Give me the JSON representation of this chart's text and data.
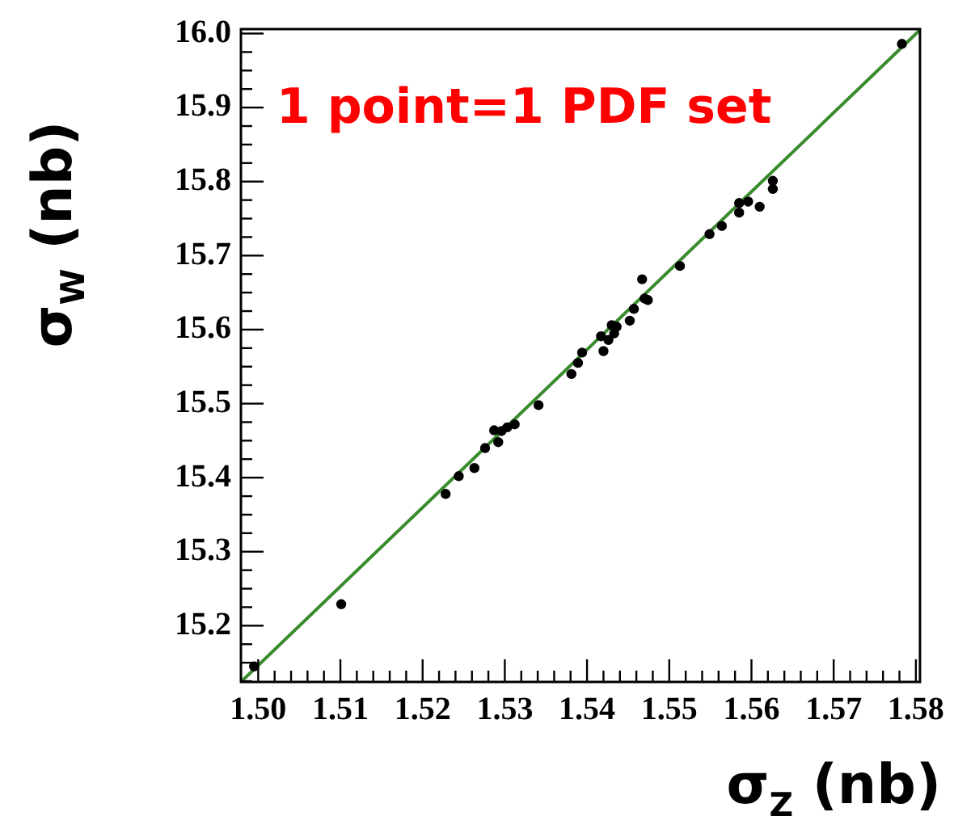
{
  "chart_data": {
    "type": "scatter",
    "xlabel": "σ$_{Z}$ (nb)",
    "ylabel": "σ$_{W}$ (nb)",
    "annotations": [
      "1 point=1 PDF set"
    ],
    "xlim": [
      1.4979,
      1.5805
    ],
    "ylim": [
      15.124,
      16.006
    ],
    "xticks": [
      {
        "value": 1.5,
        "label": "1.50"
      },
      {
        "value": 1.502,
        "label": null
      },
      {
        "value": 1.504,
        "label": null
      },
      {
        "value": 1.506,
        "label": null
      },
      {
        "value": 1.508,
        "label": null
      },
      1.51,
      {
        "value": 1.512,
        "label": null
      },
      {
        "value": 1.514,
        "label": null
      },
      {
        "value": 1.516,
        "label": null
      },
      {
        "value": 1.518,
        "label": null
      },
      1.52,
      {
        "value": 1.522,
        "label": null
      },
      {
        "value": 1.524,
        "label": null
      },
      {
        "value": 1.526,
        "label": null
      },
      {
        "value": 1.528,
        "label": null
      },
      1.53,
      {
        "value": 1.532,
        "label": null
      },
      {
        "value": 1.534,
        "label": null
      },
      {
        "value": 1.536,
        "label": null
      },
      {
        "value": 1.538,
        "label": null
      },
      1.54,
      {
        "value": 1.542,
        "label": null
      },
      {
        "value": 1.544,
        "label": null
      },
      {
        "value": 1.546,
        "label": null
      },
      {
        "value": 1.548,
        "label": null
      },
      1.55,
      {
        "value": 1.552,
        "label": null
      },
      {
        "value": 1.554,
        "label": null
      },
      {
        "value": 1.556,
        "label": null
      },
      {
        "value": 1.558,
        "label": null
      },
      1.56,
      {
        "value": 1.562,
        "label": null
      },
      {
        "value": 1.564,
        "label": null
      },
      {
        "value": 1.566,
        "label": null
      },
      {
        "value": 1.568,
        "label": null
      },
      1.57,
      {
        "value": 1.572,
        "label": null
      },
      {
        "value": 1.574,
        "label": null
      },
      {
        "value": 1.576,
        "label": null
      },
      {
        "value": 1.578,
        "label": null
      },
      1.58
    ],
    "yticks": [
      {
        "value": 15.125,
        "label": null
      },
      {
        "value": 15.15,
        "label": null
      },
      {
        "value": 15.175,
        "label": null
      },
      15.2,
      {
        "value": 15.225,
        "label": null
      },
      {
        "value": 15.25,
        "label": null
      },
      {
        "value": 15.275,
        "label": null
      },
      15.3,
      {
        "value": 15.325,
        "label": null
      },
      {
        "value": 15.35,
        "label": null
      },
      {
        "value": 15.375,
        "label": null
      },
      15.4,
      {
        "value": 15.425,
        "label": null
      },
      {
        "value": 15.45,
        "label": null
      },
      {
        "value": 15.475,
        "label": null
      },
      15.5,
      {
        "value": 15.525,
        "label": null
      },
      {
        "value": 15.55,
        "label": null
      },
      {
        "value": 15.575,
        "label": null
      },
      15.6,
      {
        "value": 15.625,
        "label": null
      },
      {
        "value": 15.65,
        "label": null
      },
      {
        "value": 15.675,
        "label": null
      },
      15.7,
      {
        "value": 15.725,
        "label": null
      },
      {
        "value": 15.75,
        "label": null
      },
      {
        "value": 15.775,
        "label": null
      },
      15.8,
      {
        "value": 15.825,
        "label": null
      },
      {
        "value": 15.85,
        "label": null
      },
      {
        "value": 15.875,
        "label": null
      },
      15.9,
      {
        "value": 15.925,
        "label": null
      },
      {
        "value": 15.95,
        "label": null
      },
      {
        "value": 15.975,
        "label": null
      },
      {
        "value": 16.0,
        "label": "16.0"
      }
    ],
    "grid": false,
    "legend": false,
    "marker": "circle",
    "series": [
      {
        "color": "#000000",
        "x": [
          1.4995,
          1.5101,
          1.5228,
          1.5244,
          1.5263,
          1.5276,
          1.5287,
          1.5292,
          1.5296,
          1.5303,
          1.5312,
          1.5341,
          1.5381,
          1.5389,
          1.5394,
          1.5417,
          1.542,
          1.5426,
          1.543,
          1.5433,
          1.5436,
          1.5452,
          1.5457,
          1.5467,
          1.547,
          1.5474,
          1.5513,
          1.5549,
          1.5564,
          1.5585,
          1.5585,
          1.5596,
          1.561,
          1.5626,
          1.5626,
          1.5783
        ],
        "values": [
          15.145,
          15.229,
          15.378,
          15.402,
          15.413,
          15.44,
          15.464,
          15.448,
          15.463,
          15.468,
          15.472,
          15.498,
          15.54,
          15.555,
          15.569,
          15.591,
          15.571,
          15.586,
          15.606,
          15.595,
          15.604,
          15.612,
          15.628,
          15.668,
          15.642,
          15.64,
          15.686,
          15.729,
          15.74,
          15.771,
          15.758,
          15.773,
          15.766,
          15.801,
          15.79,
          15.986
        ]
      },
      {
        "type": "line",
        "color": "#3a8a2e",
        "x": [
          1.4979,
          1.5805
        ],
        "values": [
          15.124,
          16.005
        ],
        "marker": "none",
        "line_style": "solid"
      }
    ]
  }
}
